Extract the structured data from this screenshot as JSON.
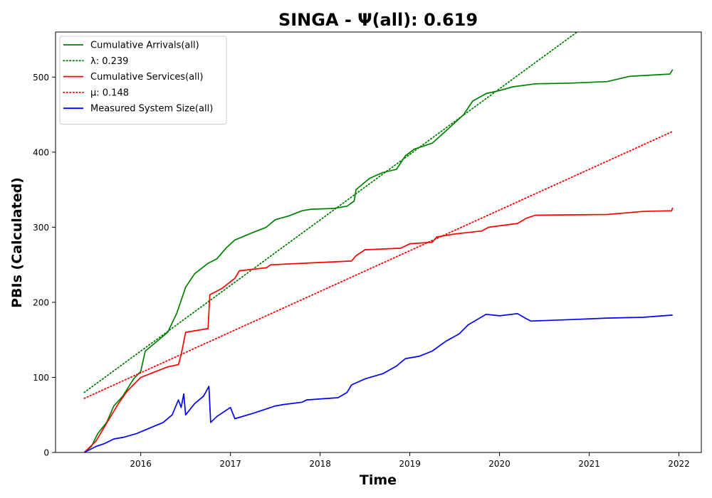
{
  "chart_data": {
    "type": "line",
    "title": "SINGA -  Ψ(all): 0.619",
    "xlabel": "Time",
    "ylabel": "PBIs (Calculated)",
    "xlim": [
      2015.05,
      2022.25
    ],
    "ylim": [
      0,
      560
    ],
    "x_ticks": [
      "2016",
      "2017",
      "2018",
      "2019",
      "2020",
      "2021",
      "2022"
    ],
    "y_ticks": [
      "0",
      "100",
      "200",
      "300",
      "400",
      "500"
    ],
    "grid": false,
    "legend_position": "top-left",
    "series": [
      {
        "name": "Cumulative Arrivals(all)",
        "style": "solid",
        "color": "#008000",
        "points": [
          [
            2015.37,
            0
          ],
          [
            2015.45,
            8
          ],
          [
            2015.52,
            25
          ],
          [
            2015.62,
            40
          ],
          [
            2015.7,
            62
          ],
          [
            2015.8,
            75
          ],
          [
            2015.92,
            98
          ],
          [
            2016.0,
            108
          ],
          [
            2016.05,
            135
          ],
          [
            2016.15,
            145
          ],
          [
            2016.3,
            160
          ],
          [
            2016.4,
            185
          ],
          [
            2016.5,
            220
          ],
          [
            2016.6,
            238
          ],
          [
            2016.75,
            252
          ],
          [
            2016.85,
            258
          ],
          [
            2016.95,
            272
          ],
          [
            2017.05,
            283
          ],
          [
            2017.25,
            293
          ],
          [
            2017.4,
            300
          ],
          [
            2017.5,
            310
          ],
          [
            2017.65,
            315
          ],
          [
            2017.8,
            322
          ],
          [
            2017.9,
            324
          ],
          [
            2018.15,
            325
          ],
          [
            2018.3,
            328
          ],
          [
            2018.38,
            335
          ],
          [
            2018.4,
            350
          ],
          [
            2018.55,
            365
          ],
          [
            2018.7,
            373
          ],
          [
            2018.85,
            377
          ],
          [
            2018.95,
            395
          ],
          [
            2019.05,
            404
          ],
          [
            2019.25,
            412
          ],
          [
            2019.4,
            428
          ],
          [
            2019.6,
            450
          ],
          [
            2019.7,
            468
          ],
          [
            2019.85,
            478
          ],
          [
            2020.0,
            482
          ],
          [
            2020.15,
            487
          ],
          [
            2020.4,
            491
          ],
          [
            2020.8,
            492
          ],
          [
            2021.2,
            494
          ],
          [
            2021.45,
            501
          ],
          [
            2021.9,
            504
          ],
          [
            2021.93,
            510
          ]
        ]
      },
      {
        "name": "λ: 0.239",
        "style": "dotted",
        "color": "#008000",
        "points": [
          [
            2015.37,
            80
          ],
          [
            2020.9,
            563
          ]
        ]
      },
      {
        "name": "Cumulative Services(all)",
        "style": "solid",
        "color": "#ff0000",
        "points": [
          [
            2015.37,
            0
          ],
          [
            2015.5,
            15
          ],
          [
            2015.65,
            45
          ],
          [
            2015.75,
            65
          ],
          [
            2015.85,
            82
          ],
          [
            2016.0,
            100
          ],
          [
            2016.15,
            107
          ],
          [
            2016.3,
            114
          ],
          [
            2016.42,
            117
          ],
          [
            2016.45,
            130
          ],
          [
            2016.5,
            160
          ],
          [
            2016.75,
            165
          ],
          [
            2016.77,
            210
          ],
          [
            2016.9,
            218
          ],
          [
            2017.05,
            232
          ],
          [
            2017.1,
            242
          ],
          [
            2017.4,
            246
          ],
          [
            2017.45,
            250
          ],
          [
            2017.8,
            252
          ],
          [
            2018.35,
            255
          ],
          [
            2018.4,
            262
          ],
          [
            2018.5,
            270
          ],
          [
            2018.9,
            272
          ],
          [
            2019.0,
            278
          ],
          [
            2019.25,
            280
          ],
          [
            2019.3,
            287
          ],
          [
            2019.5,
            291
          ],
          [
            2019.8,
            295
          ],
          [
            2019.88,
            300
          ],
          [
            2020.2,
            305
          ],
          [
            2020.3,
            312
          ],
          [
            2020.4,
            316
          ],
          [
            2021.2,
            317
          ],
          [
            2021.6,
            321
          ],
          [
            2021.92,
            322
          ],
          [
            2021.93,
            326
          ]
        ]
      },
      {
        "name": "μ: 0.148",
        "style": "dotted",
        "color": "#ff0000",
        "points": [
          [
            2015.37,
            72
          ],
          [
            2021.92,
            427
          ]
        ]
      },
      {
        "name": "Measured System Size(all)",
        "style": "solid",
        "color": "#0000ff",
        "points": [
          [
            2015.37,
            0
          ],
          [
            2015.5,
            8
          ],
          [
            2015.6,
            12
          ],
          [
            2015.7,
            18
          ],
          [
            2015.8,
            20
          ],
          [
            2015.95,
            25
          ],
          [
            2016.05,
            30
          ],
          [
            2016.25,
            40
          ],
          [
            2016.35,
            50
          ],
          [
            2016.42,
            70
          ],
          [
            2016.45,
            60
          ],
          [
            2016.48,
            78
          ],
          [
            2016.5,
            50
          ],
          [
            2016.6,
            65
          ],
          [
            2016.7,
            75
          ],
          [
            2016.76,
            88
          ],
          [
            2016.78,
            40
          ],
          [
            2016.85,
            48
          ],
          [
            2017.0,
            60
          ],
          [
            2017.05,
            45
          ],
          [
            2017.25,
            52
          ],
          [
            2017.4,
            58
          ],
          [
            2017.5,
            62
          ],
          [
            2017.6,
            64
          ],
          [
            2017.8,
            67
          ],
          [
            2017.85,
            70
          ],
          [
            2018.2,
            73
          ],
          [
            2018.3,
            80
          ],
          [
            2018.35,
            90
          ],
          [
            2018.5,
            98
          ],
          [
            2018.7,
            105
          ],
          [
            2018.85,
            115
          ],
          [
            2018.95,
            125
          ],
          [
            2019.1,
            128
          ],
          [
            2019.25,
            135
          ],
          [
            2019.4,
            148
          ],
          [
            2019.55,
            158
          ],
          [
            2019.65,
            170
          ],
          [
            2019.85,
            184
          ],
          [
            2020.0,
            182
          ],
          [
            2020.2,
            185
          ],
          [
            2020.3,
            178
          ],
          [
            2020.35,
            175
          ],
          [
            2020.8,
            177
          ],
          [
            2021.2,
            179
          ],
          [
            2021.6,
            180
          ],
          [
            2021.93,
            183
          ]
        ]
      }
    ]
  }
}
